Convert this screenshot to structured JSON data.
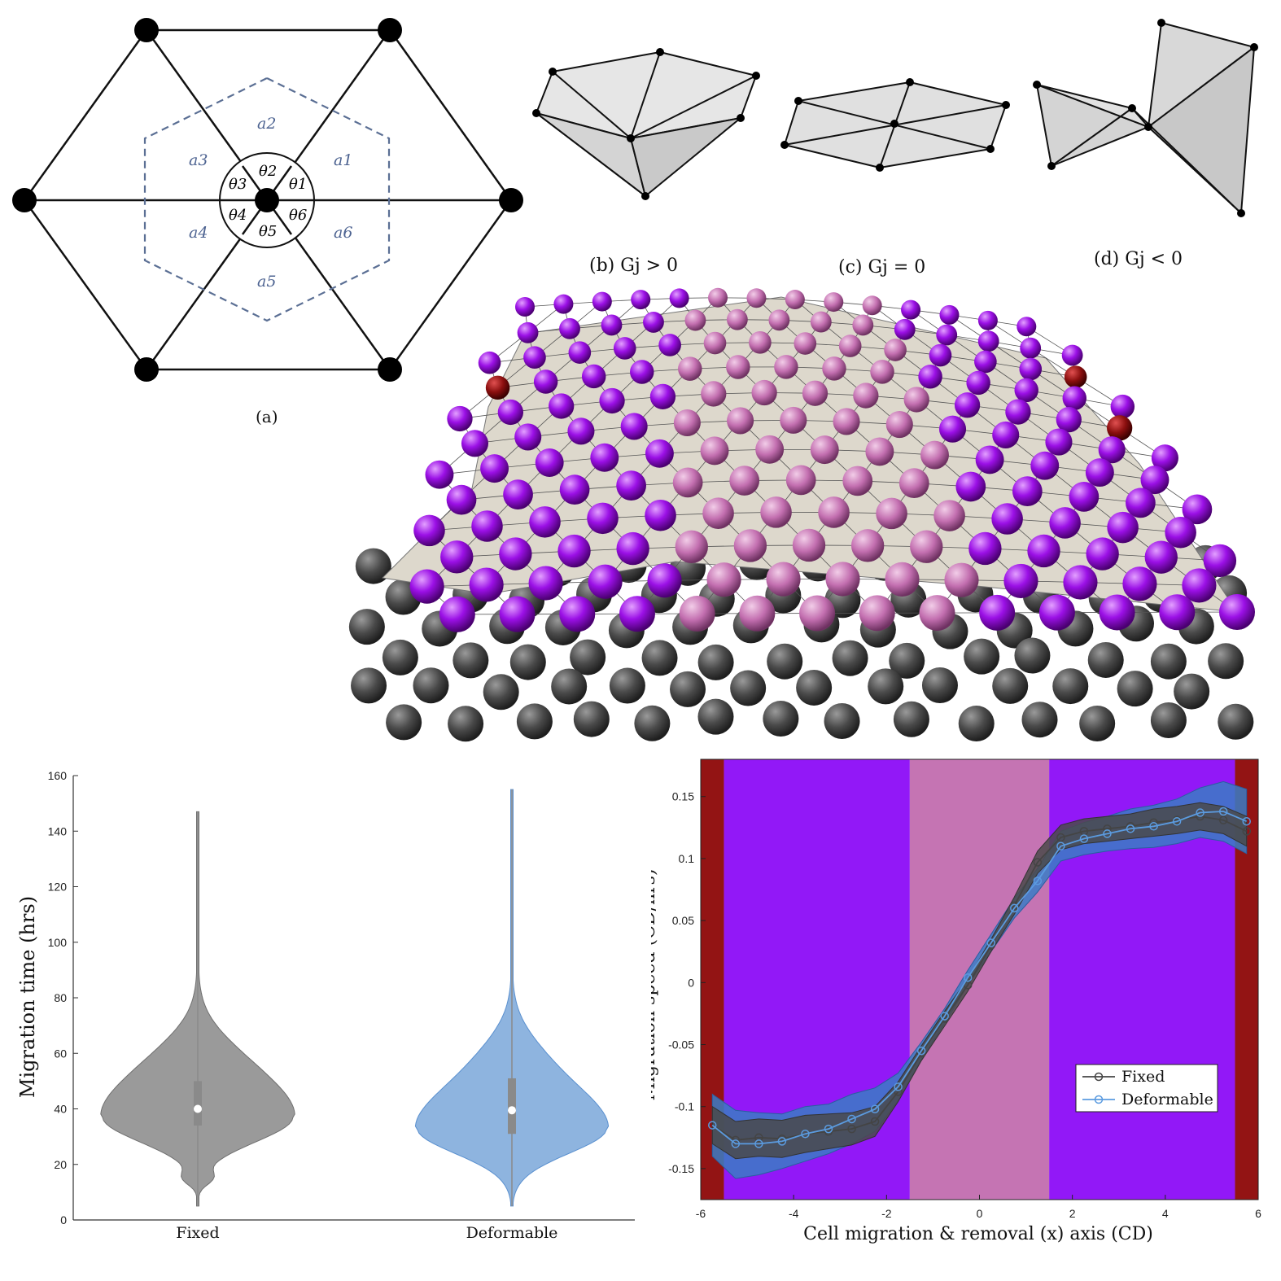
{
  "panel_a": {
    "caption": "(a)",
    "area_labels": [
      "a1",
      "a2",
      "a3",
      "a4",
      "a5",
      "a6"
    ],
    "angle_labels": [
      "θ1",
      "θ2",
      "θ3",
      "θ4",
      "θ5",
      "θ6"
    ]
  },
  "panel_b": {
    "caption": "(b) Gj > 0"
  },
  "panel_c": {
    "caption": "(c) Gj = 0"
  },
  "panel_d": {
    "caption": "(d) Gj < 0"
  },
  "colors": {
    "boundary_cell": "#9b10e6",
    "interior_cell": "#c36fb0",
    "removal_cell": "#8b0f0f",
    "substrate_cell": "#3c3c3c",
    "sheet": "#ddd8cc",
    "fixed": "#555555",
    "deformable": "#3a76c4"
  },
  "chart_data": [
    {
      "type": "violin",
      "xlabel": "",
      "ylabel": "Migration time (hrs)",
      "ylim": [
        0,
        160
      ],
      "yticks": [
        "0",
        "20",
        "40",
        "60",
        "80",
        "100",
        "120",
        "140",
        "160"
      ],
      "categories": [
        "Fixed",
        "Deformable"
      ],
      "series": [
        {
          "name": "Fixed",
          "min": 5,
          "max": 147,
          "q1": 34,
          "median": 40,
          "q3": 50,
          "mode": 37
        },
        {
          "name": "Deformable",
          "min": 5,
          "max": 155,
          "q1": 31,
          "median": 39.5,
          "q3": 51,
          "mode": 33
        }
      ]
    },
    {
      "type": "line",
      "xlabel": "Cell migration & removal (x) axis (CD)",
      "ylabel": "Migration speed (CD/hrs)",
      "xlim": [
        -6,
        6
      ],
      "ylim": [
        -0.175,
        0.18
      ],
      "xticks": [
        "-6",
        "-4",
        "-2",
        "0",
        "2",
        "4",
        "6"
      ],
      "yticks": [
        "-0.15",
        "-0.1",
        "-0.05",
        "0",
        "0.05",
        "0.1",
        "0.15"
      ],
      "bands": [
        {
          "from": -6,
          "to": -5.5,
          "color": "#931414"
        },
        {
          "from": -5.5,
          "to": -1.5,
          "color": "#9218f7"
        },
        {
          "from": -1.5,
          "to": 1.5,
          "color": "#c574b3"
        },
        {
          "from": 1.5,
          "to": 5.5,
          "color": "#9218f7"
        },
        {
          "from": 5.5,
          "to": 6,
          "color": "#931414"
        }
      ],
      "legend_position": "bottom-right",
      "legend": [
        "Fixed",
        "Deformable"
      ],
      "series": [
        {
          "name": "Fixed",
          "x": [
            -5.75,
            -5.25,
            -4.75,
            -4.25,
            -3.75,
            -3.25,
            -2.75,
            -2.25,
            -1.75,
            -1.25,
            -0.75,
            -0.25,
            0.25,
            0.75,
            1.25,
            1.75,
            2.25,
            2.75,
            3.25,
            3.75,
            4.25,
            4.75,
            5.25,
            5.75
          ],
          "y": [
            -0.115,
            -0.127,
            -0.125,
            -0.126,
            -0.122,
            -0.12,
            -0.118,
            -0.112,
            -0.088,
            -0.057,
            -0.029,
            -0.002,
            0.03,
            0.062,
            0.097,
            0.117,
            0.122,
            0.124,
            0.126,
            0.129,
            0.131,
            0.134,
            0.131,
            0.122
          ],
          "lower": [
            -0.13,
            -0.142,
            -0.14,
            -0.141,
            -0.137,
            -0.134,
            -0.131,
            -0.124,
            -0.096,
            -0.063,
            -0.035,
            -0.007,
            0.025,
            0.055,
            0.088,
            0.107,
            0.112,
            0.114,
            0.116,
            0.118,
            0.12,
            0.123,
            0.12,
            0.11
          ],
          "upper": [
            -0.1,
            -0.112,
            -0.11,
            -0.111,
            -0.107,
            -0.106,
            -0.105,
            -0.1,
            -0.08,
            -0.051,
            -0.023,
            0.003,
            0.035,
            0.069,
            0.106,
            0.127,
            0.132,
            0.134,
            0.136,
            0.14,
            0.142,
            0.145,
            0.142,
            0.134
          ]
        },
        {
          "name": "Deformable",
          "x": [
            -5.75,
            -5.25,
            -4.75,
            -4.25,
            -3.75,
            -3.25,
            -2.75,
            -2.25,
            -1.75,
            -1.25,
            -0.75,
            -0.25,
            0.25,
            0.75,
            1.25,
            1.75,
            2.25,
            2.75,
            3.25,
            3.75,
            4.25,
            4.75,
            5.25,
            5.75
          ],
          "y": [
            -0.115,
            -0.13,
            -0.13,
            -0.128,
            -0.122,
            -0.118,
            -0.11,
            -0.102,
            -0.084,
            -0.055,
            -0.027,
            0.004,
            0.032,
            0.06,
            0.082,
            0.11,
            0.116,
            0.12,
            0.124,
            0.126,
            0.13,
            0.137,
            0.138,
            0.13
          ],
          "lower": [
            -0.14,
            -0.158,
            -0.155,
            -0.15,
            -0.144,
            -0.138,
            -0.13,
            -0.12,
            -0.095,
            -0.062,
            -0.033,
            -0.002,
            0.025,
            0.052,
            0.073,
            0.098,
            0.103,
            0.106,
            0.108,
            0.109,
            0.112,
            0.117,
            0.114,
            0.104
          ],
          "upper": [
            -0.09,
            -0.103,
            -0.105,
            -0.106,
            -0.1,
            -0.098,
            -0.09,
            -0.085,
            -0.073,
            -0.048,
            -0.021,
            0.01,
            0.039,
            0.068,
            0.092,
            0.122,
            0.129,
            0.134,
            0.14,
            0.143,
            0.148,
            0.157,
            0.162,
            0.156
          ]
        }
      ]
    }
  ]
}
